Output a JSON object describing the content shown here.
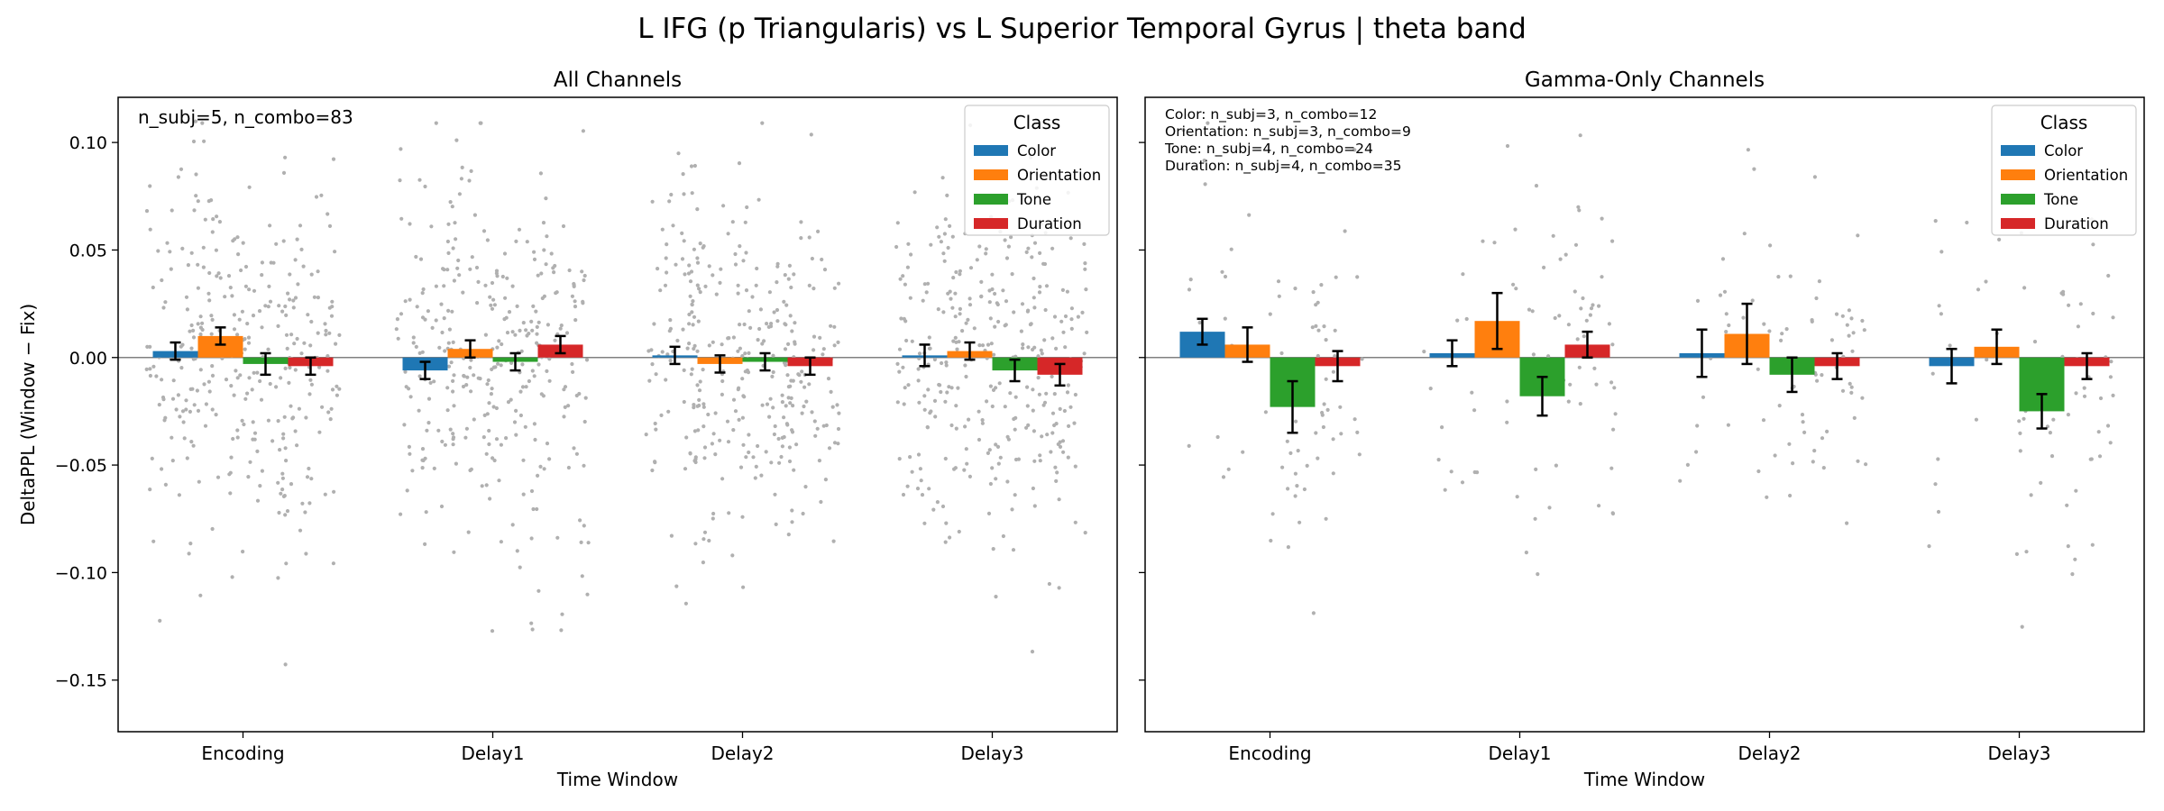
{
  "suptitle": "L IFG (p Triangularis) vs L Superior Temporal Gyrus  |  theta band",
  "colors": {
    "Color": "#1f77b4",
    "Orientation": "#ff7f0e",
    "Tone": "#2ca02c",
    "Duration": "#d62728",
    "points": "#b0b0b0",
    "axis": "#000000",
    "zero_line": "#808080"
  },
  "chart_data": [
    {
      "type": "bar",
      "title": "All Channels",
      "xlabel": "Time Window",
      "ylabel": "DeltaPPL (Window − Fix)",
      "ylim": [
        -0.174,
        0.121
      ],
      "yticks": [
        -0.15,
        -0.1,
        -0.05,
        0.0,
        0.05,
        0.1
      ],
      "ytick_labels": [
        "−0.15",
        "−0.10",
        "−0.05",
        "0.00",
        "0.05",
        "0.10"
      ],
      "categories": [
        "Encoding",
        "Delay1",
        "Delay2",
        "Delay3"
      ],
      "legend": {
        "title": "Class",
        "placement": "upper right"
      },
      "annotation": [
        "n_subj=5, n_combo=83"
      ],
      "series": [
        {
          "name": "Color",
          "values": [
            0.003,
            -0.006,
            0.001,
            0.001
          ],
          "err": [
            0.004,
            0.004,
            0.004,
            0.005
          ]
        },
        {
          "name": "Orientation",
          "values": [
            0.01,
            0.004,
            -0.003,
            0.003
          ],
          "err": [
            0.004,
            0.004,
            0.004,
            0.004
          ]
        },
        {
          "name": "Tone",
          "values": [
            -0.003,
            -0.002,
            -0.002,
            -0.006
          ],
          "err": [
            0.005,
            0.004,
            0.004,
            0.005
          ]
        },
        {
          "name": "Duration",
          "values": [
            -0.004,
            0.006,
            -0.004,
            -0.008
          ],
          "err": [
            0.004,
            0.004,
            0.004,
            0.005
          ]
        }
      ],
      "scatter_per_bar": 83
    },
    {
      "type": "bar",
      "title": "Gamma-Only Channels",
      "xlabel": "Time Window",
      "ylim": [
        -0.174,
        0.121
      ],
      "categories": [
        "Encoding",
        "Delay1",
        "Delay2",
        "Delay3"
      ],
      "legend": {
        "title": "Class",
        "placement": "upper right"
      },
      "annotation": [
        "Color: n_subj=3, n_combo=12",
        "Orientation: n_subj=3, n_combo=9",
        "Tone: n_subj=4, n_combo=24",
        "Duration: n_subj=4, n_combo=35"
      ],
      "series": [
        {
          "name": "Color",
          "values": [
            0.012,
            0.002,
            0.002,
            -0.004
          ],
          "err": [
            0.006,
            0.006,
            0.011,
            0.008
          ]
        },
        {
          "name": "Orientation",
          "values": [
            0.006,
            0.017,
            0.011,
            0.005
          ],
          "err": [
            0.008,
            0.013,
            0.014,
            0.008
          ]
        },
        {
          "name": "Tone",
          "values": [
            -0.023,
            -0.018,
            -0.008,
            -0.025
          ],
          "err": [
            0.012,
            0.009,
            0.008,
            0.008
          ]
        },
        {
          "name": "Duration",
          "values": [
            -0.004,
            0.006,
            -0.004,
            -0.004
          ],
          "err": [
            0.007,
            0.006,
            0.006,
            0.006
          ]
        }
      ],
      "scatter_per_bar": [
        12,
        9,
        24,
        35
      ]
    }
  ]
}
